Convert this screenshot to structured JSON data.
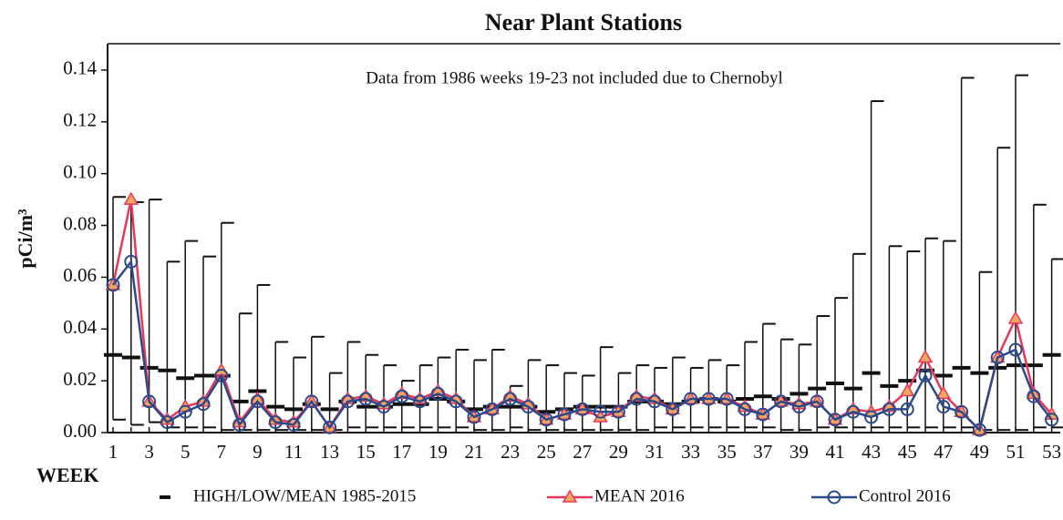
{
  "chart_data": {
    "type": "line",
    "title": "Near Plant Stations",
    "annotation": "Data from 1986 weeks 19-23 not included  due to Chernobyl",
    "y_label": "pCi/m³",
    "x_label": "WEEK",
    "categories": [
      "1",
      null,
      "3",
      null,
      "5",
      null,
      "7",
      null,
      "9",
      null,
      "11",
      null,
      "13",
      null,
      "15",
      null,
      "17",
      null,
      "19",
      null,
      "21",
      null,
      "23",
      null,
      "25",
      null,
      "27",
      null,
      "29",
      null,
      "31",
      null,
      "33",
      null,
      "35",
      null,
      "37",
      null,
      "39",
      null,
      "41",
      null,
      "43",
      null,
      "45",
      null,
      "47",
      null,
      "49",
      null,
      "51",
      null,
      "53"
    ],
    "ylim": [
      0,
      0.15
    ],
    "yticks": [
      {
        "value": 0,
        "label": "0.00"
      },
      0.02,
      0.04,
      0.06,
      0.08,
      {
        "value": 0.1,
        "label": "0.10"
      },
      0.12,
      0.14
    ],
    "range": {
      "name": "HIGH/LOW/MEAN 1985-2015",
      "color": "#111111",
      "high": [
        0.091,
        0.089,
        0.09,
        0.066,
        0.074,
        0.068,
        0.081,
        0.046,
        0.057,
        0.035,
        0.029,
        0.037,
        0.023,
        0.035,
        0.03,
        0.026,
        0.02,
        0.026,
        0.029,
        0.032,
        0.028,
        0.032,
        0.018,
        0.028,
        0.026,
        0.023,
        0.022,
        0.033,
        0.023,
        0.026,
        0.025,
        0.029,
        0.025,
        0.028,
        0.026,
        0.035,
        0.042,
        0.036,
        0.034,
        0.045,
        0.052,
        0.069,
        0.128,
        0.072,
        0.07,
        0.075,
        0.074,
        0.137,
        0.062,
        0.11,
        0.138,
        0.088,
        0.067
      ],
      "low": [
        0.005,
        0.003,
        0.004,
        0.002,
        0.002,
        0.002,
        0.001,
        0.001,
        0.001,
        0.001,
        0.001,
        0.001,
        0.001,
        0.002,
        0.002,
        0.002,
        0.002,
        0.002,
        0.002,
        0.002,
        0.001,
        0.001,
        0.002,
        0.001,
        0.001,
        0.001,
        0.001,
        0.001,
        0.001,
        0.001,
        0.002,
        0.002,
        0.002,
        0.002,
        0.002,
        0.002,
        0.002,
        0.001,
        0.001,
        0.002,
        0.002,
        0.002,
        0.002,
        0.002,
        0.002,
        0.002,
        0.002,
        0.002,
        0.001,
        0.001,
        0.001,
        0.002,
        0.002
      ],
      "mean": [
        0.03,
        0.029,
        0.025,
        0.024,
        0.021,
        0.022,
        0.022,
        0.012,
        0.016,
        0.01,
        0.009,
        0.011,
        0.009,
        0.012,
        0.01,
        0.01,
        0.011,
        0.011,
        0.013,
        0.012,
        0.009,
        0.01,
        0.01,
        0.01,
        0.008,
        0.009,
        0.01,
        0.01,
        0.01,
        0.012,
        0.012,
        0.011,
        0.012,
        0.013,
        0.012,
        0.013,
        0.014,
        0.013,
        0.015,
        0.017,
        0.019,
        0.017,
        0.023,
        0.018,
        0.02,
        0.024,
        0.022,
        0.025,
        0.023,
        0.025,
        0.026,
        0.026,
        0.03
      ]
    },
    "series": [
      {
        "name": "MEAN 2016",
        "color": "#e8375a",
        "marker_fill": "#f0a860",
        "marker": "triangle",
        "values": [
          0.057,
          0.09,
          0.012,
          0.005,
          0.01,
          0.012,
          0.024,
          0.004,
          0.013,
          0.005,
          0.004,
          0.012,
          0.002,
          0.013,
          0.014,
          0.011,
          0.015,
          0.013,
          0.016,
          0.013,
          0.006,
          0.009,
          0.014,
          0.011,
          0.005,
          0.007,
          0.009,
          0.006,
          0.008,
          0.014,
          0.013,
          0.009,
          0.013,
          0.013,
          0.013,
          0.01,
          0.007,
          0.012,
          0.011,
          0.012,
          0.005,
          0.009,
          0.008,
          0.01,
          0.016,
          0.029,
          0.015,
          0.008,
          0.001,
          0.029,
          0.044,
          0.015,
          0.007
        ]
      },
      {
        "name": "Control 2016",
        "color": "#2b4a8c",
        "marker_fill": "none",
        "marker": "circle",
        "values": [
          0.057,
          0.066,
          0.012,
          0.004,
          0.008,
          0.011,
          0.022,
          0.003,
          0.012,
          0.004,
          0.003,
          0.012,
          0.002,
          0.012,
          0.013,
          0.01,
          0.014,
          0.012,
          0.015,
          0.012,
          0.006,
          0.009,
          0.013,
          0.01,
          0.005,
          0.007,
          0.009,
          0.008,
          0.008,
          0.013,
          0.012,
          0.009,
          0.013,
          0.013,
          0.013,
          0.009,
          0.007,
          0.012,
          0.01,
          0.012,
          0.005,
          0.008,
          0.006,
          0.009,
          0.009,
          0.022,
          0.01,
          0.008,
          0.001,
          0.029,
          0.032,
          0.014,
          0.005
        ]
      }
    ]
  }
}
